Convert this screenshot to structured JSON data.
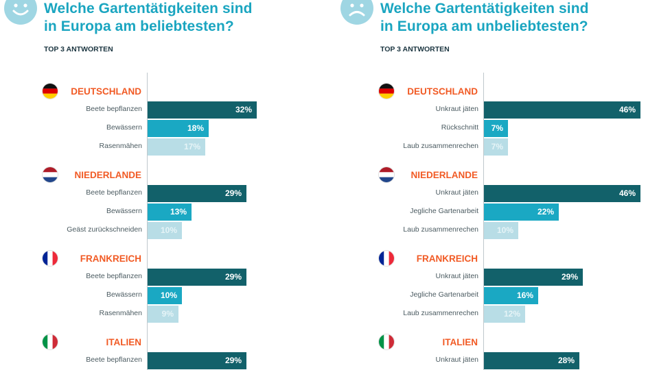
{
  "colors": {
    "title": "#1aa5c0",
    "country": "#f15a24",
    "rank1": "#12616a",
    "rank2": "#1aa8c3",
    "rank3": "#b8dde6"
  },
  "chart_data": [
    {
      "type": "bar",
      "orientation": "horizontal",
      "icon": "smiley-icon",
      "title_line1": "Welche Gartentätigkeiten sind",
      "title_line2": "in Europa am beliebtesten?",
      "subtitle": "TOP 3 ANTWORTEN",
      "value_unit": "%",
      "xlim": [
        0,
        50
      ],
      "groups": [
        {
          "country": "DEUTSCHLAND",
          "flag": "de",
          "items": [
            {
              "label": "Beete bepflanzen",
              "value": 32
            },
            {
              "label": "Bewässern",
              "value": 18
            },
            {
              "label": "Rasenmähen",
              "value": 17
            }
          ]
        },
        {
          "country": "NIEDERLANDE",
          "flag": "nl",
          "items": [
            {
              "label": "Beete bepflanzen",
              "value": 29
            },
            {
              "label": "Bewässern",
              "value": 13
            },
            {
              "label": "Geäst zurückschneiden",
              "value": 10
            }
          ]
        },
        {
          "country": "FRANKREICH",
          "flag": "fr",
          "items": [
            {
              "label": "Beete bepflanzen",
              "value": 29
            },
            {
              "label": "Bewässern",
              "value": 10
            },
            {
              "label": "Rasenmähen",
              "value": 9
            }
          ]
        },
        {
          "country": "ITALIEN",
          "flag": "it",
          "items": [
            {
              "label": "Beete bepflanzen",
              "value": 29
            }
          ]
        }
      ]
    },
    {
      "type": "bar",
      "orientation": "horizontal",
      "icon": "frowny-icon",
      "title_line1": "Welche Gartentätigkeiten sind",
      "title_line2": "in Europa am unbeliebtesten?",
      "subtitle": "TOP 3 ANTWORTEN",
      "value_unit": "%",
      "xlim": [
        0,
        50
      ],
      "groups": [
        {
          "country": "DEUTSCHLAND",
          "flag": "de",
          "items": [
            {
              "label": "Unkraut jäten",
              "value": 46
            },
            {
              "label": "Rückschnitt",
              "value": 7
            },
            {
              "label": "Laub zusammenrechen",
              "value": 7
            }
          ]
        },
        {
          "country": "NIEDERLANDE",
          "flag": "nl",
          "items": [
            {
              "label": "Unkraut jäten",
              "value": 46
            },
            {
              "label": "Jegliche Gartenarbeit",
              "value": 22
            },
            {
              "label": "Laub zusammenrechen",
              "value": 10
            }
          ]
        },
        {
          "country": "FRANKREICH",
          "flag": "fr",
          "items": [
            {
              "label": "Unkraut jäten",
              "value": 29
            },
            {
              "label": "Jegliche Gartenarbeit",
              "value": 16
            },
            {
              "label": "Laub zusammenrechen",
              "value": 12
            }
          ]
        },
        {
          "country": "ITALIEN",
          "flag": "it",
          "items": [
            {
              "label": "Unkraut jäten",
              "value": 28
            }
          ]
        }
      ]
    }
  ]
}
